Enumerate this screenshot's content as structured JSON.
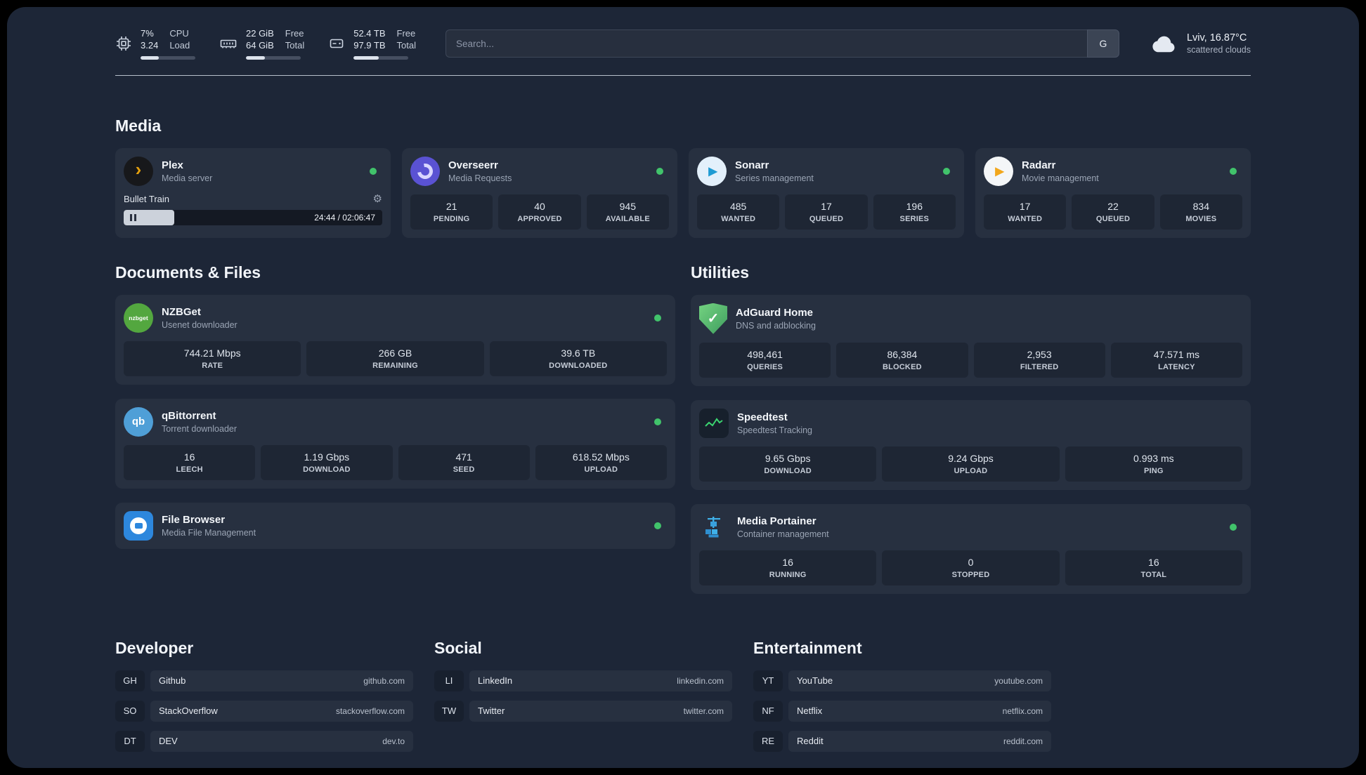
{
  "topbar": {
    "cpu": {
      "percent": "7%",
      "load": "3.24",
      "label_top": "CPU",
      "label_bottom": "Load",
      "bar_percent": 33
    },
    "memory": {
      "free": "22 GiB",
      "total": "64 GiB",
      "label_top": "Free",
      "label_bottom": "Total",
      "bar_percent": 35
    },
    "disk": {
      "free": "52.4 TB",
      "total": "97.9 TB",
      "label_top": "Free",
      "label_bottom": "Total",
      "bar_percent": 46
    },
    "search": {
      "placeholder": "Search...",
      "button_label": "G"
    },
    "weather": {
      "location": "Lviv, 16.87°C",
      "condition": "scattered clouds"
    }
  },
  "icons": {
    "gear": "⚙",
    "plex_chevron": "›",
    "sonarr_play": "▶",
    "radarr_play": "▶",
    "adguard_check": "✓",
    "qbittorrent_text": "qb",
    "nzbget_text": "nzbget"
  },
  "colors": {
    "status_online": "#41c36b",
    "plex_accent": "#e5a00d",
    "overseerr_accent": "#5a52d3",
    "sonarr_accent": "#1f9bd3",
    "radarr_accent": "#f2a71c",
    "nzbget_accent": "#53a73f",
    "qbittorrent_accent": "#4f9fd7",
    "filebrowser_accent": "#2d87dd",
    "adguard_accent": "#4a9b52",
    "speedtest_accent": "#3bd671",
    "portainer_accent": "#3fb0e8"
  },
  "sections": {
    "media": {
      "title": "Media",
      "plex": {
        "name": "Plex",
        "subtitle": "Media server",
        "player": {
          "track_title": "Bullet Train",
          "time": "24:44 / 02:06:47",
          "progress_percent": 19.5
        }
      },
      "overseerr": {
        "name": "Overseerr",
        "subtitle": "Media Requests",
        "stats": [
          {
            "value": "21",
            "label": "PENDING"
          },
          {
            "value": "40",
            "label": "APPROVED"
          },
          {
            "value": "945",
            "label": "AVAILABLE"
          }
        ]
      },
      "sonarr": {
        "name": "Sonarr",
        "subtitle": "Series management",
        "stats": [
          {
            "value": "485",
            "label": "WANTED"
          },
          {
            "value": "17",
            "label": "QUEUED"
          },
          {
            "value": "196",
            "label": "SERIES"
          }
        ]
      },
      "radarr": {
        "name": "Radarr",
        "subtitle": "Movie management",
        "stats": [
          {
            "value": "17",
            "label": "WANTED"
          },
          {
            "value": "22",
            "label": "QUEUED"
          },
          {
            "value": "834",
            "label": "MOVIES"
          }
        ]
      }
    },
    "documents": {
      "title": "Documents & Files",
      "nzbget": {
        "name": "NZBGet",
        "subtitle": "Usenet downloader",
        "stats": [
          {
            "value": "744.21 Mbps",
            "label": "RATE"
          },
          {
            "value": "266 GB",
            "label": "REMAINING"
          },
          {
            "value": "39.6 TB",
            "label": "DOWNLOADED"
          }
        ]
      },
      "qbittorrent": {
        "name": "qBittorrent",
        "subtitle": "Torrent downloader",
        "stats": [
          {
            "value": "16",
            "label": "LEECH"
          },
          {
            "value": "1.19 Gbps",
            "label": "DOWNLOAD"
          },
          {
            "value": "471",
            "label": "SEED"
          },
          {
            "value": "618.52 Mbps",
            "label": "UPLOAD"
          }
        ]
      },
      "filebrowser": {
        "name": "File Browser",
        "subtitle": "Media File Management"
      }
    },
    "utilities": {
      "title": "Utilities",
      "adguard": {
        "name": "AdGuard Home",
        "subtitle": "DNS and adblocking",
        "stats": [
          {
            "value": "498,461",
            "label": "QUERIES"
          },
          {
            "value": "86,384",
            "label": "BLOCKED"
          },
          {
            "value": "2,953",
            "label": "FILTERED"
          },
          {
            "value": "47.571 ms",
            "label": "LATENCY"
          }
        ]
      },
      "speedtest": {
        "name": "Speedtest",
        "subtitle": "Speedtest Tracking",
        "stats": [
          {
            "value": "9.65 Gbps",
            "label": "DOWNLOAD"
          },
          {
            "value": "9.24 Gbps",
            "label": "UPLOAD"
          },
          {
            "value": "0.993 ms",
            "label": "PING"
          }
        ]
      },
      "portainer": {
        "name": "Media Portainer",
        "subtitle": "Container management",
        "stats": [
          {
            "value": "16",
            "label": "RUNNING"
          },
          {
            "value": "0",
            "label": "STOPPED"
          },
          {
            "value": "16",
            "label": "TOTAL"
          }
        ]
      }
    }
  },
  "bookmarks": {
    "developer": {
      "title": "Developer",
      "items": [
        {
          "abbr": "GH",
          "name": "Github",
          "domain": "github.com"
        },
        {
          "abbr": "SO",
          "name": "StackOverflow",
          "domain": "stackoverflow.com"
        },
        {
          "abbr": "DT",
          "name": "DEV",
          "domain": "dev.to"
        }
      ]
    },
    "social": {
      "title": "Social",
      "items": [
        {
          "abbr": "LI",
          "name": "LinkedIn",
          "domain": "linkedin.com"
        },
        {
          "abbr": "TW",
          "name": "Twitter",
          "domain": "twitter.com"
        }
      ]
    },
    "entertainment": {
      "title": "Entertainment",
      "items": [
        {
          "abbr": "YT",
          "name": "YouTube",
          "domain": "youtube.com"
        },
        {
          "abbr": "NF",
          "name": "Netflix",
          "domain": "netflix.com"
        },
        {
          "abbr": "RE",
          "name": "Reddit",
          "domain": "reddit.com"
        }
      ]
    }
  }
}
